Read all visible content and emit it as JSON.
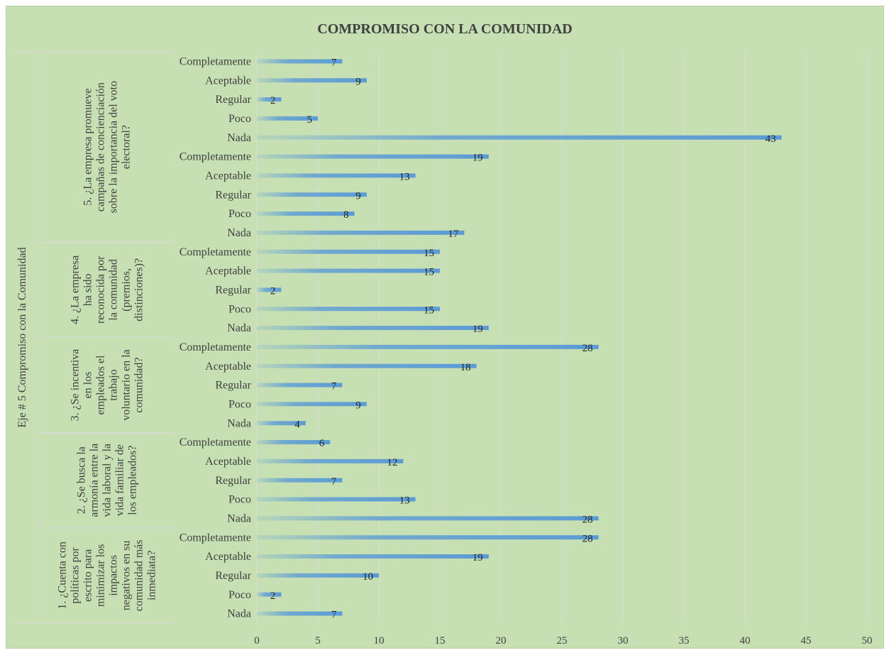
{
  "chart_data": {
    "type": "bar",
    "orientation": "horizontal",
    "title": "COMPROMISO CON LA COMUNIDAD",
    "axis_group_label": "Eje # 5 Compromiso con la Comunidad",
    "xlim": [
      0,
      50
    ],
    "x_ticks": [
      0,
      5,
      10,
      15,
      20,
      25,
      30,
      35,
      40,
      45,
      50
    ],
    "grid": true,
    "bar_color": "#5b9bd5",
    "background_color": "#c6e0b4",
    "groups": [
      {
        "question": "5. ¿La empresa promueve campañas de concienciación sobre la importancia del voto electoral?",
        "question_lines": [
          "5. ¿La empresa promueve",
          "campañas de concienciación",
          "sobre la importancia del voto",
          "electoral?"
        ],
        "categories": [
          "Completamente",
          "Aceptable",
          "Regular",
          "Poco",
          "Nada",
          "Completamente",
          "Aceptable",
          "Regular",
          "Poco",
          "Nada"
        ],
        "values": [
          7,
          9,
          2,
          5,
          43,
          19,
          13,
          9,
          8,
          17
        ]
      },
      {
        "question": "4. ¿La empresa ha sido reconocida por la comunidad (premios, distinciones)?",
        "question_lines": [
          "4. ¿La empresa",
          "ha sido",
          "reconocida por",
          "la comunidad",
          "(premios,",
          "distinciones)?"
        ],
        "categories": [
          "Completamente",
          "Aceptable",
          "Regular",
          "Poco",
          "Nada"
        ],
        "values": [
          15,
          15,
          2,
          15,
          19
        ]
      },
      {
        "question": "3. ¿Se incentiva en los empleados el trabajo voluntario en la comunidad?",
        "question_lines": [
          "3. ¿Se incentiva",
          "en los",
          "empleados el",
          "trabajo",
          "voluntario en la",
          "comunidad?"
        ],
        "categories": [
          "Completamente",
          "Aceptable",
          "Regular",
          "Poco",
          "Nada"
        ],
        "values": [
          28,
          18,
          7,
          9,
          4
        ]
      },
      {
        "question": "2. ¿Se busca la armonía entre la vida laboral y la vida familiar de los empleados?",
        "question_lines": [
          "2. ¿Se busca la",
          "armonía entre la",
          "vida laboral y la",
          "vida familiar de",
          "los empleados?"
        ],
        "categories": [
          "Completamente",
          "Aceptable",
          "Regular",
          "Poco",
          "Nada"
        ],
        "values": [
          6,
          12,
          7,
          13,
          28
        ]
      },
      {
        "question": "1. ¿Cuenta con políticas por escrito para minimizar los impactos negativos en su comunidad más inmediata?",
        "question_lines": [
          "1. ¿Cuenta con",
          "políticas por",
          "escrito para",
          "minimizar los",
          "impactos",
          "negativos en su",
          "comunidad más",
          "inmediata?"
        ],
        "categories": [
          "Completamente",
          "Aceptable",
          "Regular",
          "Poco",
          "Nada"
        ],
        "values": [
          28,
          19,
          10,
          2,
          7
        ]
      }
    ]
  }
}
